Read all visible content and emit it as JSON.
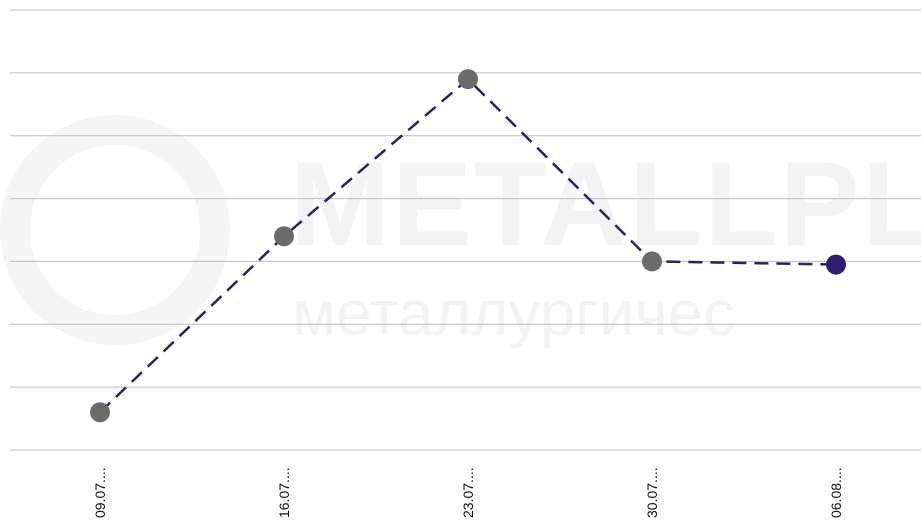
{
  "watermark": {
    "brand": "METALLPL",
    "subtitle": "металлургичес"
  },
  "chart_data": {
    "type": "line",
    "title": "",
    "xlabel": "",
    "ylabel": "",
    "categories": [
      "09.07....",
      "16.07....",
      "23.07....",
      "30.07....",
      "06.08...."
    ],
    "values": [
      0.6,
      3.4,
      5.9,
      3.0,
      2.95
    ],
    "ylim": [
      0,
      7
    ],
    "grid": true,
    "legend": "none",
    "colors": {
      "line": "#2e1f66",
      "point": "#6b6b6b",
      "last_point": "#2e1a6e",
      "grid": "#bdbdbd"
    }
  }
}
